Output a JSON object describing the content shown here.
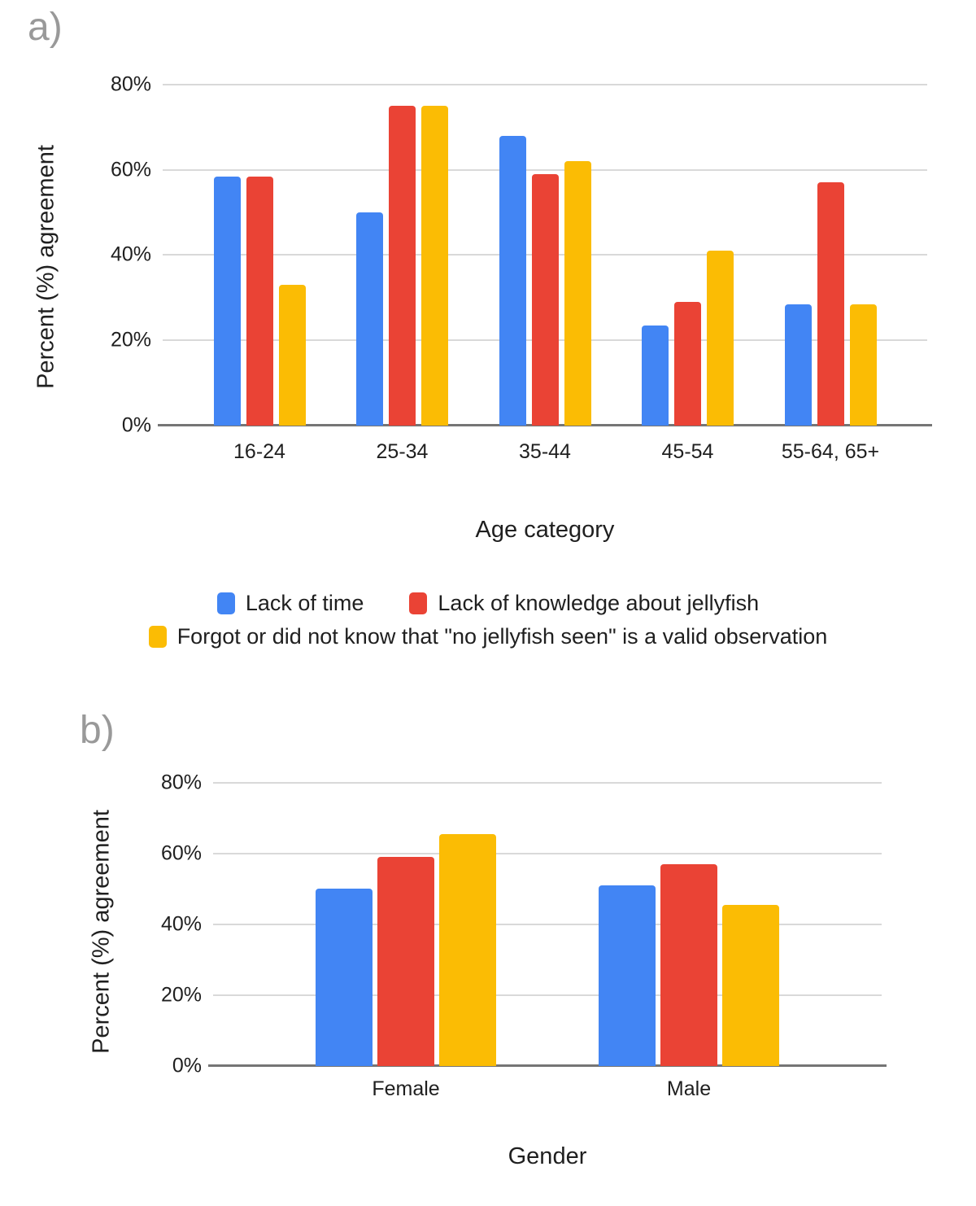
{
  "figure": {
    "background": "#ffffff"
  },
  "legend": {
    "items": [
      {
        "label": "Lack of time",
        "color": "#4285F4"
      },
      {
        "label": "Lack of knowledge about jellyfish",
        "color": "#EA4335"
      },
      {
        "label": "Forgot or did not know that \"no jellyfish seen\" is a valid observation",
        "color": "#FBBC04"
      }
    ]
  },
  "chart_data": [
    {
      "id": "a",
      "panel_label": "a)",
      "type": "bar",
      "xlabel": "Age category",
      "ylabel": "Percent (%) agreement",
      "categories": [
        "16-24",
        "25-34",
        "35-44",
        "45-54",
        "55-64, 65+"
      ],
      "series": [
        {
          "name": "Lack of time",
          "color": "#4285F4",
          "values": [
            58.5,
            50,
            68,
            23.5,
            28.5
          ]
        },
        {
          "name": "Lack of knowledge about jellyfish",
          "color": "#EA4335",
          "values": [
            58.5,
            75,
            59,
            29,
            57
          ]
        },
        {
          "name": "Forgot or did not know that \"no jellyfish seen\" is a valid observation",
          "color": "#FBBC04",
          "values": [
            33,
            75,
            62,
            41,
            28.5
          ]
        }
      ],
      "yticks": [
        "0%",
        "20%",
        "40%",
        "60%",
        "80%"
      ],
      "ylim": [
        0,
        84
      ],
      "grid": true,
      "legend_position": "below"
    },
    {
      "id": "b",
      "panel_label": "b)",
      "type": "bar",
      "xlabel": "Gender",
      "ylabel": "Percent (%) agreement",
      "categories": [
        "Female",
        "Male"
      ],
      "series": [
        {
          "name": "Lack of time",
          "color": "#4285F4",
          "values": [
            50,
            51
          ]
        },
        {
          "name": "Lack of knowledge about jellyfish",
          "color": "#EA4335",
          "values": [
            59,
            57
          ]
        },
        {
          "name": "Forgot or did not know that \"no jellyfish seen\" is a valid observation",
          "color": "#FBBC04",
          "values": [
            65.5,
            45.5
          ]
        }
      ],
      "yticks": [
        "0%",
        "20%",
        "40%",
        "60%",
        "80%"
      ],
      "ylim": [
        0,
        85
      ],
      "grid": true,
      "legend_position": "shared-with-a"
    }
  ],
  "colors": {
    "grid": "#d9d9d9",
    "baseline": "#757575",
    "text": "#1f1f1f",
    "panel_label": "#999999"
  }
}
